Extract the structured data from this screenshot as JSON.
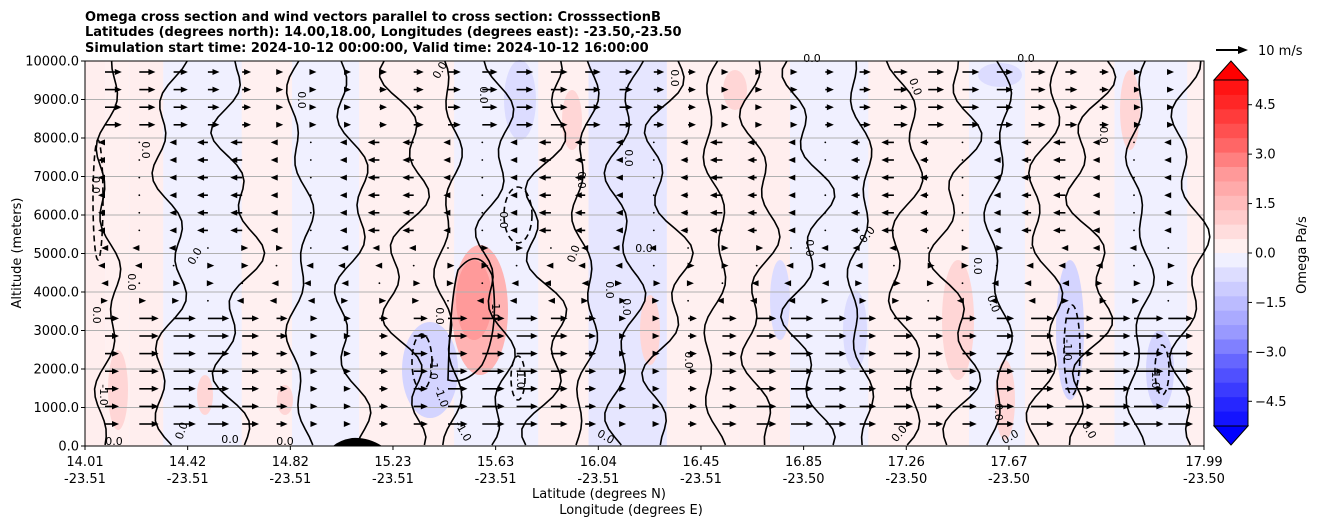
{
  "chart_data": {
    "type": "contourf",
    "title": [
      "Omega cross section and wind vectors parallel to cross section: CrosssectionB",
      "Latitudes (degrees north): 14.00,18.00, Longitudes (degrees east): -23.50,-23.50",
      "Simulation start time: 2024-10-12 00:00:00, Valid time: 2024-10-12 16:00:00"
    ],
    "xlabel_1": "Latitude (degrees N)",
    "xlabel_2": "Longitude (degrees E)",
    "ylabel": "Altitude (meters)",
    "x_ticks": [
      {
        "lat": "14.01",
        "lon": "-23.51"
      },
      {
        "lat": "14.42",
        "lon": "-23.51"
      },
      {
        "lat": "14.82",
        "lon": "-23.51"
      },
      {
        "lat": "15.23",
        "lon": "-23.51"
      },
      {
        "lat": "15.63",
        "lon": "-23.51"
      },
      {
        "lat": "16.04",
        "lon": "-23.51"
      },
      {
        "lat": "16.45",
        "lon": "-23.51"
      },
      {
        "lat": "16.85",
        "lon": "-23.50"
      },
      {
        "lat": "17.26",
        "lon": "-23.50"
      },
      {
        "lat": "17.67",
        "lon": "-23.50"
      },
      {
        "lat": "17.99",
        "lon": "-23.50"
      }
    ],
    "y_ticks": [
      "0.0",
      "1000.0",
      "2000.0",
      "3000.0",
      "4000.0",
      "5000.0",
      "6000.0",
      "7000.0",
      "8000.0",
      "9000.0",
      "10000.0"
    ],
    "ylim": [
      0,
      10000
    ],
    "grid": "horizontal",
    "colorbar": {
      "label": "Omega Pa/s",
      "ticks": [
        "4.5",
        "3.0",
        "1.5",
        "0.0",
        "−1.5",
        "−3.0",
        "−4.5"
      ],
      "range": [
        -5.25,
        5.25
      ],
      "colormap": "bwr"
    },
    "quiver_key": "10 m/s",
    "contour_labels": [
      "0.0",
      "-1.0",
      "1.0"
    ],
    "colors": {
      "positive": "#ff0000",
      "negative": "#0000ff",
      "neutral": "#ffffff",
      "contour": "#000000"
    }
  }
}
